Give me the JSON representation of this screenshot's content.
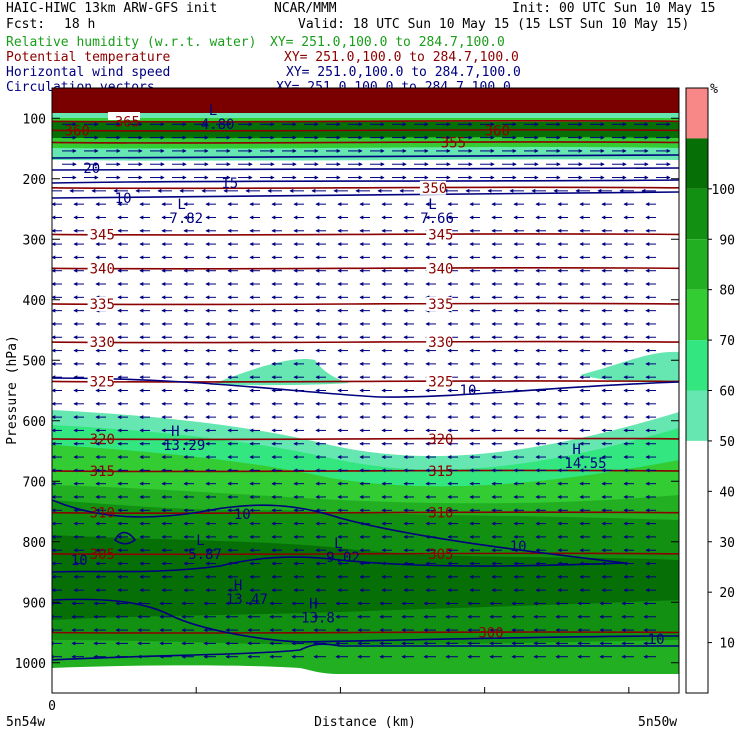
{
  "header": {
    "model": "HAIC-HIWC 13km ARW-GFS init",
    "org": "NCAR/MMM",
    "init": "Init: 00 UTC Sun 10 May 15",
    "fcst_label": "Fcst:",
    "fcst_value": "18 h",
    "valid": "Valid: 18 UTC Sun 10 May 15 (15 LST Sun 10 May 15)",
    "fields": [
      {
        "name": "Relative humidity (w.r.t. water)",
        "xy": "XY= 251.0,100.0 to 284.7,100.0",
        "color": "#1a9e1a"
      },
      {
        "name": "Potential temperature",
        "xy": "XY= 251.0,100.0 to 284.7,100.0",
        "color": "#8b0000"
      },
      {
        "name": "Horizontal wind speed",
        "xy": "XY= 251.0,100.0 to 284.7,100.0",
        "color": "#000080"
      },
      {
        "name": "Circulation vectors",
        "xy": "XY= 251.0,100.0 to 284.7,100.0",
        "color": "#000080"
      }
    ]
  },
  "chart_data": {
    "type": "heatmap",
    "title": "",
    "xlabel": "Distance (km)",
    "ylabel": "Pressure (hPa)",
    "ylim": [
      1050,
      50
    ],
    "y_ticks": [
      100,
      200,
      300,
      400,
      500,
      600,
      700,
      800,
      900,
      1000
    ],
    "x_tick_label": "0",
    "x_left_label": "5n54w",
    "x_right_label": "5n50w",
    "colorbar": {
      "unit": "%",
      "levels": [
        10,
        20,
        30,
        40,
        50,
        60,
        70,
        80,
        90,
        100
      ],
      "colors": [
        "#ffffff",
        "#66e6b0",
        "#33e680",
        "#33cc33",
        "#22b022",
        "#129012",
        "#067006",
        "#f88888"
      ]
    },
    "theta_labels": [
      {
        "value": "305",
        "p": 820
      },
      {
        "value": "310",
        "p": 752
      },
      {
        "value": "315",
        "p": 683
      },
      {
        "value": "320",
        "p": 630
      },
      {
        "value": "325",
        "p": 535
      },
      {
        "value": "330",
        "p": 470
      },
      {
        "value": "335",
        "p": 407
      },
      {
        "value": "340",
        "p": 348
      },
      {
        "value": "345",
        "p": 292
      },
      {
        "value": "350",
        "p": 215
      },
      {
        "value": "355",
        "p": 140
      },
      {
        "value": "360",
        "p": 120
      },
      {
        "value": "365",
        "p": 105
      },
      {
        "value": "300",
        "p": 950
      }
    ],
    "wind_labels": [
      "10",
      "15",
      "20",
      "10",
      "10",
      "10",
      "10",
      "10"
    ],
    "extrema": [
      {
        "type": "L",
        "value": "4.80",
        "km": 0.25,
        "p": 95
      },
      {
        "type": "L",
        "value": "7.82",
        "km": 0.2,
        "p": 250
      },
      {
        "type": "L",
        "value": "7.66",
        "km": 0.6,
        "p": 250
      },
      {
        "type": "H",
        "value": "13.29",
        "km": 0.19,
        "p": 625
      },
      {
        "type": "H",
        "value": "14.55",
        "km": 0.83,
        "p": 655
      },
      {
        "type": "L",
        "value": "5.87",
        "km": 0.23,
        "p": 805
      },
      {
        "type": "L",
        "value": "9.02",
        "km": 0.45,
        "p": 810
      },
      {
        "type": "H",
        "value": "13.47",
        "km": 0.29,
        "p": 880
      },
      {
        "type": "H",
        "value": "13.8",
        "km": 0.41,
        "p": 910
      }
    ]
  }
}
